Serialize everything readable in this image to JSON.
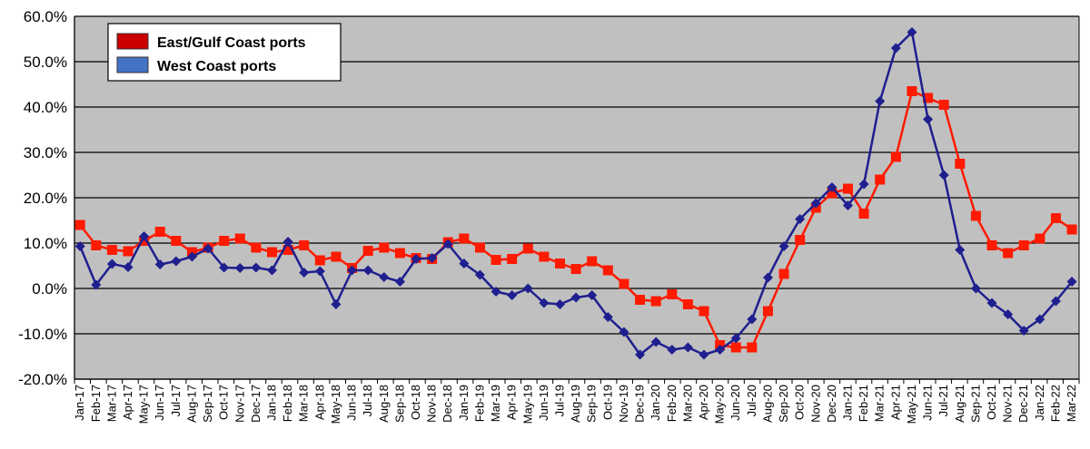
{
  "chart_data": {
    "type": "line",
    "categories": [
      "Jan-17",
      "Feb-17",
      "Mar-17",
      "Apr-17",
      "May-17",
      "Jun-17",
      "Jul-17",
      "Aug-17",
      "Sep-17",
      "Oct-17",
      "Nov-17",
      "Dec-17",
      "Jan-18",
      "Feb-18",
      "Mar-18",
      "Apr-18",
      "May-18",
      "Jun-18",
      "Jul-18",
      "Aug-18",
      "Sep-18",
      "Oct-18",
      "Nov-18",
      "Dec-18",
      "Jan-19",
      "Feb-19",
      "Mar-19",
      "Apr-19",
      "May-19",
      "Jun-19",
      "Jul-19",
      "Aug-19",
      "Sep-19",
      "Oct-19",
      "Nov-19",
      "Dec-19",
      "Jan-20",
      "Feb-20",
      "Mar-20",
      "Apr-20",
      "May-20",
      "Jun-20",
      "Jul-20",
      "Aug-20",
      "Sep-20",
      "Oct-20",
      "Nov-20",
      "Dec-20",
      "Jan-21",
      "Feb-21",
      "Mar-21",
      "Apr-21",
      "May-21",
      "Jun-21",
      "Jul-21",
      "Aug-21",
      "Sep-21",
      "Oct-21",
      "Nov-21",
      "Dec-21",
      "Jan-22",
      "Feb-22",
      "Mar-22"
    ],
    "series": [
      {
        "name": "East/Gulf Coast ports",
        "color": "#ff1a00",
        "marker": "square",
        "values": [
          14.0,
          9.5,
          8.5,
          8.2,
          10.5,
          12.5,
          10.5,
          8.0,
          9.0,
          10.5,
          11.0,
          9.0,
          8.0,
          8.5,
          9.5,
          6.2,
          7.0,
          4.5,
          8.3,
          9.0,
          7.8,
          6.7,
          6.5,
          10.2,
          11.0,
          9.0,
          6.3,
          6.5,
          8.8,
          7.0,
          5.5,
          4.3,
          6.0,
          4.0,
          1.0,
          -2.5,
          -2.8,
          -1.3,
          -3.5,
          -5.0,
          -12.5,
          -13.0,
          -13.0,
          -5.0,
          3.2,
          10.7,
          17.8,
          21.0,
          22.0,
          16.5,
          24.0,
          29.0,
          43.5,
          42.0,
          40.5,
          27.5,
          16.0,
          9.5,
          7.8,
          9.5,
          11.0,
          15.5,
          13.0
        ]
      },
      {
        "name": "West Coast ports",
        "color": "#1f1f8f",
        "marker": "diamond",
        "values": [
          9.3,
          0.8,
          5.4,
          4.7,
          11.5,
          5.3,
          6.0,
          7.0,
          8.8,
          4.6,
          4.5,
          4.6,
          4.0,
          10.3,
          3.5,
          3.8,
          -3.5,
          4.0,
          4.0,
          2.5,
          1.5,
          6.5,
          6.7,
          9.8,
          5.5,
          3.0,
          -0.7,
          -1.5,
          0.0,
          -3.2,
          -3.5,
          -2.0,
          -1.5,
          -6.3,
          -9.6,
          -14.6,
          -11.8,
          -13.5,
          -13.0,
          -14.6,
          -13.5,
          -11.0,
          -6.8,
          2.4,
          9.3,
          15.3,
          18.8,
          22.3,
          18.3,
          23.0,
          41.3,
          53.0,
          56.5,
          37.3,
          25.0,
          8.5,
          0.0,
          -3.2,
          -5.7,
          -9.3,
          -6.8,
          -2.8,
          1.5
        ]
      }
    ],
    "title": "",
    "xlabel": "",
    "ylabel": "",
    "ylim": [
      -20,
      60
    ],
    "yticks": [
      "-20.0%",
      "-10.0%",
      "0.0%",
      "10.0%",
      "20.0%",
      "30.0%",
      "40.0%",
      "50.0%",
      "60.0%"
    ],
    "yticks_values": [
      -20,
      -10,
      0,
      10,
      20,
      30,
      40,
      50,
      60
    ],
    "grid": true,
    "legend": {
      "placement": "top-left",
      "entries": [
        "East/Gulf Coast ports",
        "West Coast ports"
      ]
    },
    "colors": {
      "plot_background": "#c0c0c0",
      "gridline": "#000000",
      "east_gulf_swatch": "#cc0000",
      "west_swatch": "#4472c4"
    }
  }
}
